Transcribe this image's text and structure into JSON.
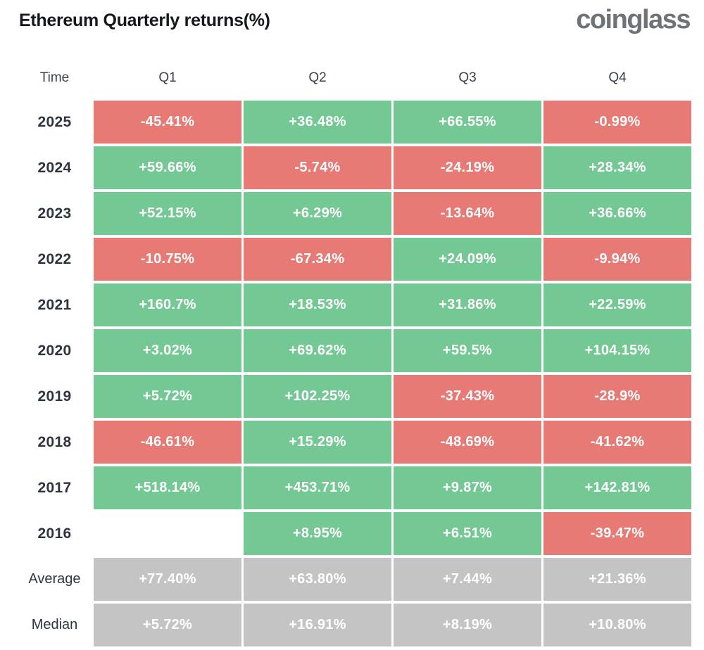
{
  "header": {
    "title": "Ethereum Quarterly returns(%)",
    "logo": "coinglass"
  },
  "colors": {
    "positive": "#74c893",
    "negative": "#e87a76",
    "summary": "#c4c4c4",
    "title": "#15181c",
    "logo": "#6e7378",
    "label": "#2e3540",
    "header_text": "#3a4149"
  },
  "table": {
    "columns": [
      "Time",
      "Q1",
      "Q2",
      "Q3",
      "Q4"
    ],
    "rows": [
      {
        "label": "2025",
        "summary": false,
        "cells": [
          {
            "value": "-45.41%",
            "sentiment": "red"
          },
          {
            "value": "+36.48%",
            "sentiment": "green"
          },
          {
            "value": "+66.55%",
            "sentiment": "green"
          },
          {
            "value": "-0.99%",
            "sentiment": "red"
          }
        ]
      },
      {
        "label": "2024",
        "summary": false,
        "cells": [
          {
            "value": "+59.66%",
            "sentiment": "green"
          },
          {
            "value": "-5.74%",
            "sentiment": "red"
          },
          {
            "value": "-24.19%",
            "sentiment": "red"
          },
          {
            "value": "+28.34%",
            "sentiment": "green"
          }
        ]
      },
      {
        "label": "2023",
        "summary": false,
        "cells": [
          {
            "value": "+52.15%",
            "sentiment": "green"
          },
          {
            "value": "+6.29%",
            "sentiment": "green"
          },
          {
            "value": "-13.64%",
            "sentiment": "red"
          },
          {
            "value": "+36.66%",
            "sentiment": "green"
          }
        ]
      },
      {
        "label": "2022",
        "summary": false,
        "cells": [
          {
            "value": "-10.75%",
            "sentiment": "red"
          },
          {
            "value": "-67.34%",
            "sentiment": "red"
          },
          {
            "value": "+24.09%",
            "sentiment": "green"
          },
          {
            "value": "-9.94%",
            "sentiment": "red"
          }
        ]
      },
      {
        "label": "2021",
        "summary": false,
        "cells": [
          {
            "value": "+160.7%",
            "sentiment": "green"
          },
          {
            "value": "+18.53%",
            "sentiment": "green"
          },
          {
            "value": "+31.86%",
            "sentiment": "green"
          },
          {
            "value": "+22.59%",
            "sentiment": "green"
          }
        ]
      },
      {
        "label": "2020",
        "summary": false,
        "cells": [
          {
            "value": "+3.02%",
            "sentiment": "green"
          },
          {
            "value": "+69.62%",
            "sentiment": "green"
          },
          {
            "value": "+59.5%",
            "sentiment": "green"
          },
          {
            "value": "+104.15%",
            "sentiment": "green"
          }
        ]
      },
      {
        "label": "2019",
        "summary": false,
        "cells": [
          {
            "value": "+5.72%",
            "sentiment": "green"
          },
          {
            "value": "+102.25%",
            "sentiment": "green"
          },
          {
            "value": "-37.43%",
            "sentiment": "red"
          },
          {
            "value": "-28.9%",
            "sentiment": "red"
          }
        ]
      },
      {
        "label": "2018",
        "summary": false,
        "cells": [
          {
            "value": "-46.61%",
            "sentiment": "red"
          },
          {
            "value": "+15.29%",
            "sentiment": "green"
          },
          {
            "value": "-48.69%",
            "sentiment": "red"
          },
          {
            "value": "-41.62%",
            "sentiment": "red"
          }
        ]
      },
      {
        "label": "2017",
        "summary": false,
        "cells": [
          {
            "value": "+518.14%",
            "sentiment": "green"
          },
          {
            "value": "+453.71%",
            "sentiment": "green"
          },
          {
            "value": "+9.87%",
            "sentiment": "green"
          },
          {
            "value": "+142.81%",
            "sentiment": "green"
          }
        ]
      },
      {
        "label": "2016",
        "summary": false,
        "cells": [
          {
            "value": "",
            "sentiment": "empty"
          },
          {
            "value": "+8.95%",
            "sentiment": "green"
          },
          {
            "value": "+6.51%",
            "sentiment": "green"
          },
          {
            "value": "-39.47%",
            "sentiment": "red"
          }
        ]
      },
      {
        "label": "Average",
        "summary": true,
        "cells": [
          {
            "value": "+77.40%",
            "sentiment": "gray"
          },
          {
            "value": "+63.80%",
            "sentiment": "gray"
          },
          {
            "value": "+7.44%",
            "sentiment": "gray"
          },
          {
            "value": "+21.36%",
            "sentiment": "gray"
          }
        ]
      },
      {
        "label": "Median",
        "summary": true,
        "cells": [
          {
            "value": "+5.72%",
            "sentiment": "gray"
          },
          {
            "value": "+16.91%",
            "sentiment": "gray"
          },
          {
            "value": "+8.19%",
            "sentiment": "gray"
          },
          {
            "value": "+10.80%",
            "sentiment": "gray"
          }
        ]
      }
    ]
  },
  "chart_data": {
    "type": "heatmap",
    "title": "Ethereum Quarterly returns(%)",
    "columns": [
      "Q1",
      "Q2",
      "Q3",
      "Q4"
    ],
    "rows": [
      "2025",
      "2024",
      "2023",
      "2022",
      "2021",
      "2020",
      "2019",
      "2018",
      "2017",
      "2016",
      "Average",
      "Median"
    ],
    "values_pct": [
      [
        -45.41,
        36.48,
        66.55,
        -0.99
      ],
      [
        59.66,
        -5.74,
        -24.19,
        28.34
      ],
      [
        52.15,
        6.29,
        -13.64,
        36.66
      ],
      [
        -10.75,
        -67.34,
        24.09,
        -9.94
      ],
      [
        160.7,
        18.53,
        31.86,
        22.59
      ],
      [
        3.02,
        69.62,
        59.5,
        104.15
      ],
      [
        5.72,
        102.25,
        -37.43,
        -28.9
      ],
      [
        -46.61,
        15.29,
        -48.69,
        -41.62
      ],
      [
        518.14,
        453.71,
        9.87,
        142.81
      ],
      [
        null,
        8.95,
        6.51,
        -39.47
      ],
      [
        77.4,
        63.8,
        7.44,
        21.36
      ],
      [
        5.72,
        16.91,
        8.19,
        10.8
      ]
    ],
    "legend": "green = positive quarterly return, red = negative quarterly return, gray = summary rows (Average/Median)",
    "layout": "rows are years (newest first) plus Average and Median summary rows; columns are quarters Q1-Q4"
  }
}
